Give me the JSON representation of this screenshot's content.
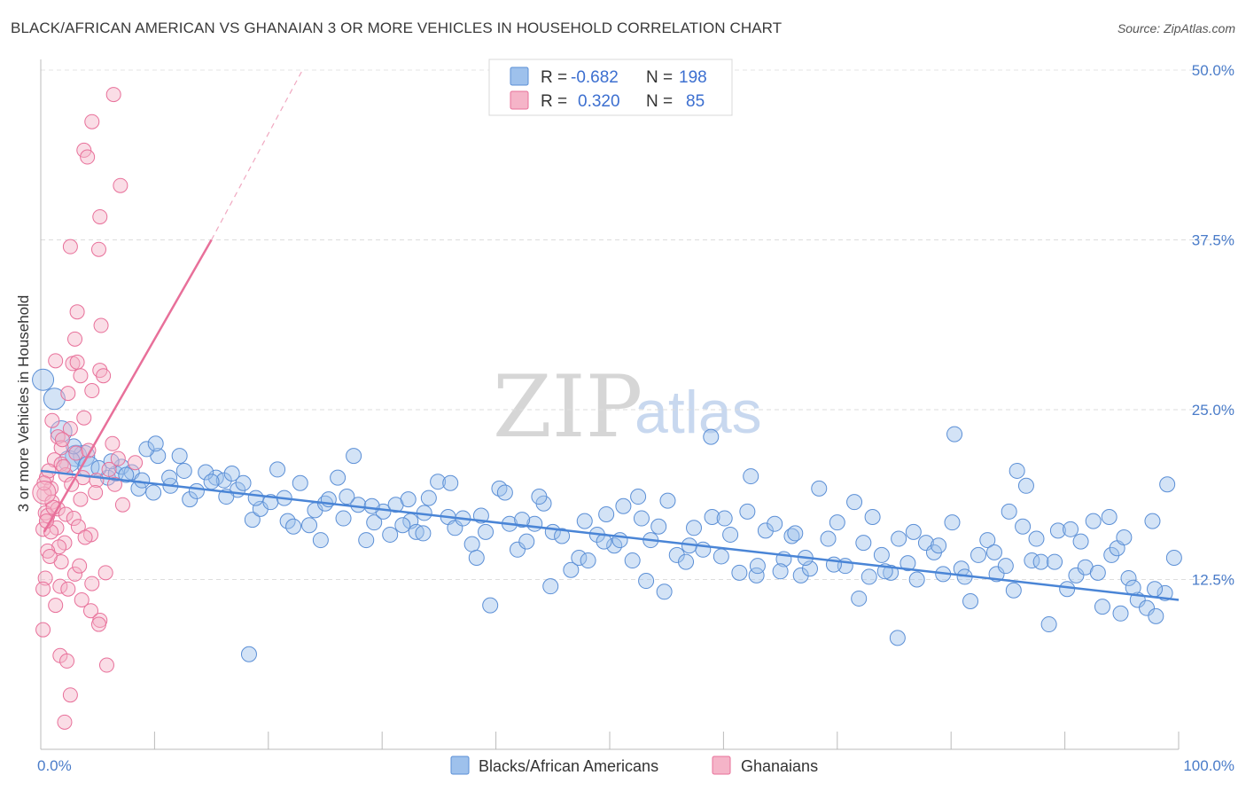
{
  "title": "BLACK/AFRICAN AMERICAN VS GHANAIAN 3 OR MORE VEHICLES IN HOUSEHOLD CORRELATION CHART",
  "source": "Source: ZipAtlas.com",
  "watermark": {
    "zip": "ZIP",
    "atlas": "atlas"
  },
  "legend": {
    "rows": [
      {
        "r_label": "R =",
        "r_value": "-0.682",
        "n_label": "N =",
        "n_value": "198",
        "color": "#9ec1ec"
      },
      {
        "r_label": "R =",
        "r_value": " 0.320",
        "n_label": "N =",
        "n_value": " 85",
        "color": "#f5b4c8"
      }
    ]
  },
  "bottom_legend": [
    {
      "label": "Blacks/African Americans",
      "color": "#9ec1ec"
    },
    {
      "label": "Ghanaians",
      "color": "#f5b4c8"
    }
  ],
  "chart_data": {
    "type": "scatter",
    "xlabel": "",
    "ylabel": "3 or more Vehicles in Household",
    "xlim": [
      0,
      100
    ],
    "ylim": [
      0,
      50
    ],
    "x_tick_labels": [
      "0.0%",
      "100.0%"
    ],
    "y_ticks": [
      12.5,
      25.0,
      37.5,
      50.0
    ],
    "y_tick_labels": [
      "12.5%",
      "25.0%",
      "37.5%",
      "50.0%"
    ],
    "grid": true,
    "colors": {
      "blue": "#4a85d6",
      "pink": "#e8709a"
    },
    "series": [
      {
        "name": "Blacks/African Americans",
        "color": "#9ec1ec",
        "stroke": "#5b8fd6",
        "trend": {
          "x": [
            0,
            100
          ],
          "y": [
            20.5,
            11.0
          ]
        },
        "points": [
          [
            0.2,
            27.2
          ],
          [
            1.2,
            25.8
          ],
          [
            1.8,
            23.4
          ],
          [
            3.1,
            21.6
          ],
          [
            3.8,
            21.6
          ],
          [
            2.5,
            21.2
          ],
          [
            4.2,
            20.8
          ],
          [
            5.9,
            20.0
          ],
          [
            6.6,
            20.3
          ],
          [
            7.1,
            20.8
          ],
          [
            8.0,
            20.4
          ],
          [
            8.6,
            19.2
          ],
          [
            8.9,
            19.8
          ],
          [
            9.9,
            18.9
          ],
          [
            10.3,
            21.6
          ],
          [
            11.4,
            19.4
          ],
          [
            12.6,
            20.5
          ],
          [
            13.1,
            18.4
          ],
          [
            13.7,
            19.0
          ],
          [
            11.3,
            20.0
          ],
          [
            15.4,
            20.0
          ],
          [
            16.1,
            19.8
          ],
          [
            17.3,
            19.1
          ],
          [
            17.8,
            19.6
          ],
          [
            18.6,
            16.9
          ],
          [
            19.3,
            17.7
          ],
          [
            20.2,
            18.2
          ],
          [
            21.7,
            16.8
          ],
          [
            22.2,
            16.4
          ],
          [
            23.6,
            16.5
          ],
          [
            24.1,
            17.6
          ],
          [
            25.0,
            18.1
          ],
          [
            26.1,
            20.0
          ],
          [
            25.3,
            18.4
          ],
          [
            26.6,
            17.0
          ],
          [
            27.9,
            18.0
          ],
          [
            28.6,
            15.4
          ],
          [
            29.3,
            16.7
          ],
          [
            30.1,
            17.5
          ],
          [
            30.7,
            15.8
          ],
          [
            31.2,
            18.0
          ],
          [
            32.5,
            16.8
          ],
          [
            33.0,
            16.0
          ],
          [
            34.1,
            18.5
          ],
          [
            33.7,
            17.4
          ],
          [
            35.8,
            17.1
          ],
          [
            36.4,
            16.3
          ],
          [
            37.1,
            17.0
          ],
          [
            37.9,
            15.1
          ],
          [
            38.7,
            17.2
          ],
          [
            39.1,
            16.0
          ],
          [
            40.3,
            19.2
          ],
          [
            41.2,
            16.6
          ],
          [
            41.9,
            14.7
          ],
          [
            42.7,
            15.3
          ],
          [
            43.4,
            16.6
          ],
          [
            44.2,
            18.1
          ],
          [
            45.0,
            16.0
          ],
          [
            45.8,
            15.7
          ],
          [
            46.6,
            13.2
          ],
          [
            47.3,
            14.1
          ],
          [
            48.1,
            13.9
          ],
          [
            48.9,
            15.8
          ],
          [
            49.7,
            17.3
          ],
          [
            50.4,
            15.0
          ],
          [
            51.2,
            17.9
          ],
          [
            52.0,
            13.9
          ],
          [
            52.8,
            17.0
          ],
          [
            53.6,
            15.4
          ],
          [
            54.3,
            16.4
          ],
          [
            55.1,
            18.3
          ],
          [
            55.9,
            14.3
          ],
          [
            56.7,
            13.8
          ],
          [
            57.4,
            16.3
          ],
          [
            58.2,
            14.7
          ],
          [
            59.0,
            17.1
          ],
          [
            59.8,
            14.2
          ],
          [
            60.6,
            15.8
          ],
          [
            61.4,
            13.0
          ],
          [
            62.1,
            17.5
          ],
          [
            62.9,
            12.8
          ],
          [
            63.7,
            16.1
          ],
          [
            64.5,
            16.6
          ],
          [
            65.3,
            14.0
          ],
          [
            66.0,
            15.7
          ],
          [
            66.8,
            12.8
          ],
          [
            67.6,
            13.3
          ],
          [
            68.4,
            19.2
          ],
          [
            69.2,
            15.5
          ],
          [
            70.0,
            16.7
          ],
          [
            70.7,
            13.5
          ],
          [
            71.5,
            18.2
          ],
          [
            72.3,
            15.2
          ],
          [
            73.1,
            17.1
          ],
          [
            73.9,
            14.3
          ],
          [
            74.7,
            13.0
          ],
          [
            75.4,
            15.5
          ],
          [
            76.2,
            13.7
          ],
          [
            77.0,
            12.5
          ],
          [
            77.8,
            15.2
          ],
          [
            78.5,
            14.5
          ],
          [
            79.3,
            12.9
          ],
          [
            80.1,
            16.7
          ],
          [
            80.9,
            13.3
          ],
          [
            81.7,
            10.9
          ],
          [
            82.4,
            14.3
          ],
          [
            83.2,
            15.4
          ],
          [
            84.0,
            12.9
          ],
          [
            84.8,
            13.5
          ],
          [
            85.5,
            11.7
          ],
          [
            86.3,
            16.4
          ],
          [
            87.1,
            13.9
          ],
          [
            87.9,
            13.8
          ],
          [
            88.6,
            9.2
          ],
          [
            89.4,
            16.1
          ],
          [
            90.2,
            11.8
          ],
          [
            91.0,
            12.8
          ],
          [
            91.8,
            13.4
          ],
          [
            92.5,
            16.8
          ],
          [
            93.3,
            10.5
          ],
          [
            94.1,
            14.3
          ],
          [
            94.9,
            10.0
          ],
          [
            95.6,
            12.6
          ],
          [
            96.4,
            11.0
          ],
          [
            97.2,
            10.4
          ],
          [
            98.0,
            9.8
          ],
          [
            98.8,
            11.5
          ],
          [
            99.6,
            14.1
          ],
          [
            18.3,
            7.0
          ],
          [
            39.5,
            10.6
          ],
          [
            44.8,
            12.0
          ],
          [
            52.5,
            18.6
          ],
          [
            58.9,
            23.0
          ],
          [
            62.4,
            20.1
          ],
          [
            66.3,
            15.9
          ],
          [
            71.9,
            11.1
          ],
          [
            75.3,
            8.2
          ],
          [
            80.3,
            23.2
          ],
          [
            85.8,
            20.5
          ],
          [
            86.6,
            19.4
          ],
          [
            90.5,
            16.2
          ],
          [
            93.9,
            17.1
          ],
          [
            96.0,
            11.9
          ],
          [
            97.7,
            16.8
          ],
          [
            99.0,
            19.5
          ],
          [
            2.9,
            22.3
          ],
          [
            5.1,
            20.7
          ],
          [
            6.2,
            21.2
          ],
          [
            7.5,
            20.2
          ],
          [
            9.3,
            22.1
          ],
          [
            10.1,
            22.5
          ],
          [
            12.2,
            21.6
          ],
          [
            14.5,
            20.4
          ],
          [
            15.0,
            19.7
          ],
          [
            16.8,
            20.3
          ],
          [
            18.9,
            18.5
          ],
          [
            21.4,
            18.5
          ],
          [
            22.8,
            19.6
          ],
          [
            24.6,
            15.4
          ],
          [
            26.9,
            18.6
          ],
          [
            29.1,
            17.9
          ],
          [
            31.8,
            16.5
          ],
          [
            33.6,
            15.9
          ],
          [
            34.9,
            19.7
          ],
          [
            36.0,
            19.6
          ],
          [
            38.3,
            14.1
          ],
          [
            40.8,
            18.9
          ],
          [
            42.3,
            16.9
          ],
          [
            43.8,
            18.6
          ],
          [
            47.8,
            16.8
          ],
          [
            49.5,
            15.3
          ],
          [
            50.9,
            15.4
          ],
          [
            53.2,
            12.4
          ],
          [
            54.8,
            11.6
          ],
          [
            57.0,
            15.0
          ],
          [
            60.1,
            17.0
          ],
          [
            63.0,
            13.5
          ],
          [
            65.0,
            13.1
          ],
          [
            67.2,
            14.1
          ],
          [
            69.7,
            13.6
          ],
          [
            72.8,
            12.7
          ],
          [
            74.2,
            13.1
          ],
          [
            76.7,
            16.0
          ],
          [
            78.9,
            15.0
          ],
          [
            81.2,
            12.7
          ],
          [
            83.8,
            14.5
          ],
          [
            85.1,
            17.5
          ],
          [
            87.5,
            15.5
          ],
          [
            89.1,
            13.8
          ],
          [
            91.4,
            15.3
          ],
          [
            92.9,
            13.0
          ],
          [
            94.6,
            14.8
          ],
          [
            95.2,
            15.6
          ],
          [
            97.9,
            11.8
          ],
          [
            16.3,
            18.6
          ],
          [
            20.8,
            20.6
          ],
          [
            27.5,
            21.6
          ],
          [
            32.3,
            18.4
          ]
        ],
        "point_sizes": {
          "big": [
            [
              0.2,
              27.2
            ],
            [
              1.2,
              25.8
            ],
            [
              1.8,
              23.4
            ],
            [
              3.1,
              21.6
            ],
            [
              3.8,
              21.6
            ],
            [
              2.5,
              21.2
            ],
            [
              4.2,
              20.8
            ]
          ]
        }
      },
      {
        "name": "Ghanaians",
        "color": "#f5b4c8",
        "stroke": "#e8709a",
        "trend": {
          "x": [
            0.3,
            15.0
          ],
          "y": [
            16.0,
            37.5
          ],
          "dashed_to": {
            "x": 23.0,
            "y": 50.0
          }
        },
        "points": [
          [
            6.4,
            48.2
          ],
          [
            4.5,
            46.2
          ],
          [
            3.8,
            44.1
          ],
          [
            4.1,
            43.6
          ],
          [
            7.0,
            41.5
          ],
          [
            5.2,
            39.2
          ],
          [
            2.6,
            37.0
          ],
          [
            5.1,
            36.8
          ],
          [
            3.2,
            32.2
          ],
          [
            5.3,
            31.2
          ],
          [
            3.0,
            30.2
          ],
          [
            1.3,
            28.6
          ],
          [
            2.8,
            28.4
          ],
          [
            3.2,
            28.5
          ],
          [
            5.2,
            27.9
          ],
          [
            5.5,
            27.5
          ],
          [
            3.5,
            27.5
          ],
          [
            4.5,
            26.4
          ],
          [
            2.4,
            26.2
          ],
          [
            3.8,
            24.4
          ],
          [
            1.0,
            24.2
          ],
          [
            2.6,
            23.6
          ],
          [
            1.5,
            23.0
          ],
          [
            1.8,
            22.2
          ],
          [
            6.3,
            22.5
          ],
          [
            3.1,
            21.8
          ],
          [
            1.2,
            21.3
          ],
          [
            1.8,
            21.0
          ],
          [
            0.5,
            20.0
          ],
          [
            0.7,
            20.5
          ],
          [
            2.2,
            20.2
          ],
          [
            3.7,
            20.0
          ],
          [
            4.9,
            19.8
          ],
          [
            6.5,
            19.5
          ],
          [
            0.9,
            19.2
          ],
          [
            0.3,
            18.8
          ],
          [
            4.8,
            18.9
          ],
          [
            3.5,
            18.4
          ],
          [
            1.0,
            18.2
          ],
          [
            1.5,
            17.7
          ],
          [
            2.2,
            17.3
          ],
          [
            0.4,
            17.4
          ],
          [
            0.6,
            17.2
          ],
          [
            2.9,
            17.0
          ],
          [
            3.3,
            16.4
          ],
          [
            1.4,
            16.3
          ],
          [
            0.2,
            16.2
          ],
          [
            0.9,
            16.0
          ],
          [
            4.4,
            15.8
          ],
          [
            2.1,
            15.2
          ],
          [
            1.6,
            14.9
          ],
          [
            0.6,
            14.6
          ],
          [
            1.8,
            13.8
          ],
          [
            3.0,
            12.9
          ],
          [
            0.4,
            12.6
          ],
          [
            4.5,
            12.2
          ],
          [
            5.7,
            13.0
          ],
          [
            1.7,
            12.0
          ],
          [
            2.4,
            11.8
          ],
          [
            0.2,
            11.8
          ],
          [
            3.6,
            11.0
          ],
          [
            1.3,
            10.6
          ],
          [
            4.4,
            10.2
          ],
          [
            5.2,
            9.5
          ],
          [
            5.1,
            9.2
          ],
          [
            0.2,
            8.8
          ],
          [
            1.7,
            6.9
          ],
          [
            2.3,
            6.5
          ],
          [
            5.8,
            6.2
          ],
          [
            2.6,
            4.0
          ],
          [
            2.1,
            2.0
          ],
          [
            7.2,
            18.0
          ],
          [
            6.8,
            21.4
          ],
          [
            6.0,
            20.6
          ],
          [
            8.3,
            21.1
          ],
          [
            0.5,
            16.8
          ],
          [
            1.9,
            22.8
          ],
          [
            3.9,
            15.6
          ],
          [
            2.7,
            19.5
          ],
          [
            4.2,
            22.0
          ],
          [
            0.8,
            14.2
          ],
          [
            1.1,
            17.8
          ],
          [
            3.4,
            13.5
          ],
          [
            2.0,
            20.8
          ],
          [
            0.3,
            19.6
          ]
        ]
      }
    ]
  }
}
